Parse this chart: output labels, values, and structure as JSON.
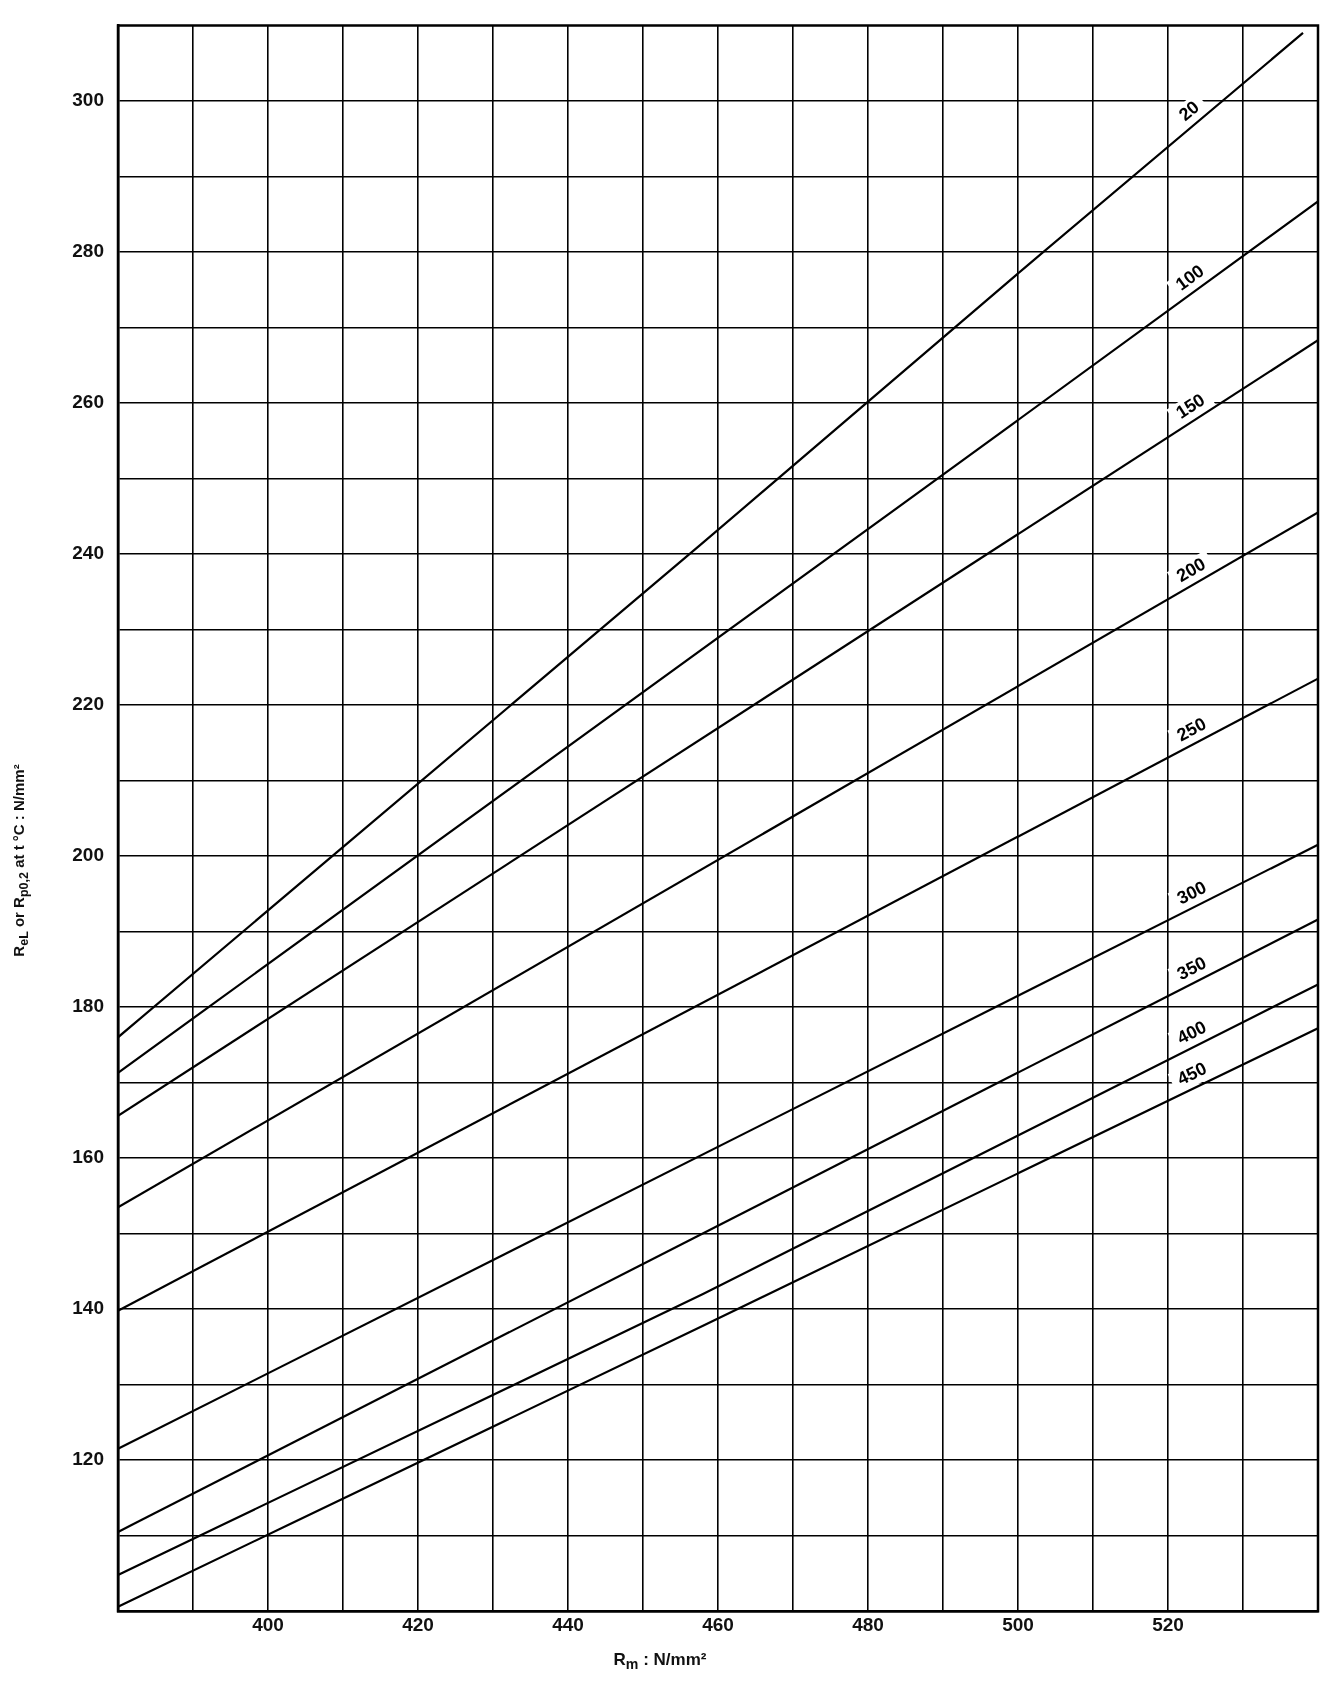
{
  "chart_data": {
    "type": "line",
    "xlabel": "R$_{m}$ : N/mm²",
    "ylabel": "R$_{eL}$ or R$_{p0,2}$ at t °C : N/mm²",
    "xlim": [
      380,
      540
    ],
    "ylim": [
      100,
      310
    ],
    "xticks": [
      {
        "value": 390,
        "label": null
      },
      400,
      {
        "value": 410,
        "label": null
      },
      420,
      {
        "value": 430,
        "label": null
      },
      440,
      {
        "value": 450,
        "label": null
      },
      460,
      {
        "value": 470,
        "label": null
      },
      480,
      {
        "value": 490,
        "label": null
      },
      500,
      {
        "value": 510,
        "label": null
      },
      520,
      {
        "value": 530,
        "label": null
      }
    ],
    "yticks": [
      {
        "value": 110,
        "label": null
      },
      120,
      {
        "value": 130,
        "label": null
      },
      140,
      {
        "value": 150,
        "label": null
      },
      160,
      {
        "value": 170,
        "label": null
      },
      180,
      {
        "value": 190,
        "label": null
      },
      200,
      {
        "value": 210,
        "label": null
      },
      220,
      {
        "value": 230,
        "label": null
      },
      240,
      {
        "value": 250,
        "label": null
      },
      260,
      {
        "value": 270,
        "label": null
      },
      280,
      {
        "value": 290,
        "label": null
      },
      300
    ],
    "grid": true,
    "legend": false,
    "marker": "none",
    "line_style": "solid",
    "series": [
      {
        "name": "20",
        "color": "#000000",
        "x": [
          380,
          458,
          501,
          538
        ],
        "values": [
          176,
          241.5,
          278,
          309
        ]
      },
      {
        "name": "100",
        "color": "#000000",
        "x": [
          380,
          490,
          540
        ],
        "values": [
          171.3,
          250.5,
          286.7
        ]
      },
      {
        "name": "150",
        "color": "#000000",
        "x": [
          380,
          540
        ],
        "values": [
          165.6,
          268.3
        ]
      },
      {
        "name": "200",
        "color": "#000000",
        "x": [
          380,
          540
        ],
        "values": [
          153.5,
          245.5
        ]
      },
      {
        "name": "250",
        "color": "#000000",
        "x": [
          380,
          540
        ],
        "values": [
          139.8,
          223.5
        ]
      },
      {
        "name": "300",
        "color": "#000000",
        "x": [
          380,
          540
        ],
        "values": [
          121.5,
          201.5
        ]
      },
      {
        "name": "350",
        "color": "#000000",
        "x": [
          380,
          540
        ],
        "values": [
          110.5,
          191.6
        ]
      },
      {
        "name": "400",
        "color": "#000000",
        "x": [
          380,
          458,
          540
        ],
        "values": [
          104.8,
          142,
          183
        ]
      },
      {
        "name": "450",
        "color": "#000000",
        "x": [
          380,
          458,
          540
        ],
        "values": [
          100.6,
          137.8,
          177.2
        ]
      }
    ]
  }
}
